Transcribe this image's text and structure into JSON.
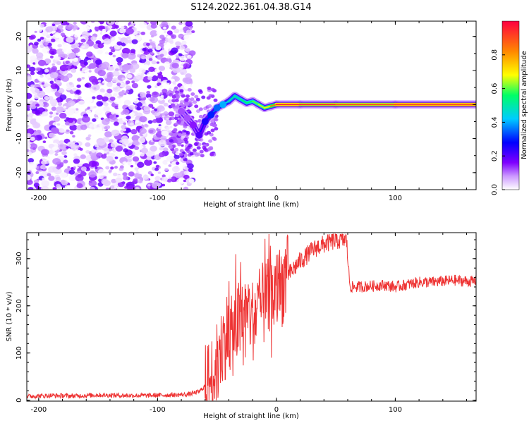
{
  "title": "S124.2022.361.04.38.G14",
  "chart_data": [
    {
      "type": "heatmap",
      "xlabel": "Height of straight line (km)",
      "ylabel": "Frequency (Hz)",
      "xlim": [
        -210,
        168
      ],
      "ylim": [
        -25,
        24.5
      ],
      "xticks": [
        -200,
        -100,
        0,
        100
      ],
      "yticks": [
        -20,
        -10,
        0,
        10,
        20
      ],
      "colorbar": {
        "label": "Normalized spectral amplitude",
        "range": [
          0,
          1
        ],
        "ticks": [
          0.0,
          0.2,
          0.4,
          0.6,
          0.8
        ],
        "tick_labels": [
          "0.0",
          "0.2",
          "0.4",
          "0.6",
          "0.8"
        ],
        "colormap": [
          "#ffffff",
          "#cc99ff",
          "#7f00ff",
          "#0000ff",
          "#00ccff",
          "#00ff66",
          "#ffff00",
          "#ff8800",
          "#ff0040"
        ]
      },
      "noise_region": {
        "x": [
          -210,
          -70
        ],
        "y": [
          -25,
          24.5
        ],
        "amplitude_range": [
          0.0,
          0.2
        ]
      },
      "ridge": [
        {
          "x": -80,
          "y": -2,
          "amp": 0.12
        },
        {
          "x": -75,
          "y": -4,
          "amp": 0.12
        },
        {
          "x": -70,
          "y": -6,
          "amp": 0.15
        },
        {
          "x": -65,
          "y": -9,
          "amp": 0.2
        },
        {
          "x": -60,
          "y": -5,
          "amp": 0.25
        },
        {
          "x": -55,
          "y": -3,
          "amp": 0.3
        },
        {
          "x": -50,
          "y": -1,
          "amp": 0.35
        },
        {
          "x": -45,
          "y": 0,
          "amp": 0.4
        },
        {
          "x": -40,
          "y": 1,
          "amp": 0.45
        },
        {
          "x": -35,
          "y": 2.5,
          "amp": 0.5
        },
        {
          "x": -30,
          "y": 1.5,
          "amp": 0.5
        },
        {
          "x": -25,
          "y": 0.5,
          "amp": 0.55
        },
        {
          "x": -20,
          "y": 1,
          "amp": 0.55
        },
        {
          "x": -15,
          "y": 0,
          "amp": 0.6
        },
        {
          "x": -10,
          "y": -1,
          "amp": 0.65
        },
        {
          "x": -5,
          "y": -0.5,
          "amp": 0.7
        },
        {
          "x": 0,
          "y": 0,
          "amp": 0.85
        },
        {
          "x": 20,
          "y": 0,
          "amp": 0.95
        },
        {
          "x": 50,
          "y": 0,
          "amp": 0.8
        },
        {
          "x": 100,
          "y": 0,
          "amp": 0.9
        },
        {
          "x": 168,
          "y": 0,
          "amp": 0.9
        }
      ]
    },
    {
      "type": "line",
      "xlabel": "Height of straight line (km)",
      "ylabel": "SNR (10 * v/v)",
      "xlim": [
        -210,
        168
      ],
      "ylim": [
        -2,
        355
      ],
      "xticks": [
        -200,
        -100,
        0,
        100
      ],
      "yticks": [
        0,
        100,
        200,
        300
      ],
      "series": [
        {
          "color": "#ee3333",
          "x": [
            -210,
            -190,
            -170,
            -150,
            -130,
            -110,
            -90,
            -75,
            -65,
            -58,
            -52,
            -48,
            -45,
            -42,
            -40,
            -38,
            -35,
            -32,
            -28,
            -25,
            -22,
            -20,
            -15,
            -10,
            -5,
            0,
            5,
            10,
            15,
            20,
            25,
            30,
            35,
            40,
            45,
            50,
            55,
            59,
            60,
            62,
            70,
            80,
            90,
            100,
            110,
            120,
            130,
            140,
            150,
            160,
            168
          ],
          "y": [
            8,
            10,
            9,
            11,
            10,
            10,
            11,
            12,
            18,
            35,
            60,
            90,
            120,
            140,
            155,
            130,
            150,
            165,
            160,
            175,
            185,
            170,
            195,
            205,
            215,
            230,
            245,
            265,
            280,
            295,
            305,
            318,
            325,
            330,
            335,
            338,
            340,
            340,
            300,
            240,
            240,
            242,
            244,
            240,
            245,
            250,
            250,
            252,
            254,
            252,
            252
          ]
        }
      ]
    }
  ]
}
